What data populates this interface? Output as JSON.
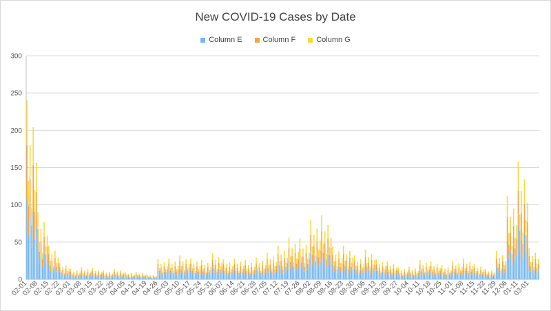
{
  "chart_data": {
    "type": "bar",
    "stacked": true,
    "title": "New COVID-19 Cases by Date",
    "xlabel": "",
    "ylabel": "",
    "ylim": [
      0,
      300
    ],
    "yticks": [
      "0",
      "50",
      "100",
      "150",
      "200",
      "250",
      "300"
    ],
    "grid": true,
    "legend_position": "top",
    "colors": {
      "Column E": "#74b6f0",
      "Column F": "#f7a33f",
      "Column G": "#fdd83a",
      "grid": "#d9d9d9",
      "axis": "#bfbfbf"
    },
    "x_tick_labels": [
      "02-01",
      "02-08",
      "02-15",
      "02-22",
      "03-01",
      "03-08",
      "03-15",
      "03-22",
      "03-29",
      "04-05",
      "04-12",
      "04-19",
      "04-26",
      "05-03",
      "05-10",
      "05-17",
      "05-24",
      "05-31",
      "06-07",
      "06-14",
      "06-21",
      "06-28",
      "07-05",
      "07-12",
      "07-19",
      "07-26",
      "08-02",
      "08-09",
      "08-16",
      "08-23",
      "08-30",
      "09-06",
      "09-13",
      "09-20",
      "09-27",
      "10-04",
      "10-11",
      "10-18",
      "10-25",
      "11-01",
      "11-08",
      "11-15",
      "11-22",
      "11-29",
      "12-06",
      "01-11",
      "03-01"
    ],
    "weekly_totals": [
      240,
      90,
      45,
      22,
      14,
      16,
      15,
      12,
      14,
      10,
      10,
      7,
      27,
      28,
      32,
      28,
      26,
      35,
      27,
      28,
      26,
      29,
      36,
      45,
      56,
      55,
      80,
      86,
      44,
      45,
      32,
      40,
      27,
      24,
      16,
      17,
      26,
      24,
      19,
      25,
      28,
      20,
      14,
      38,
      112,
      158,
      42
    ],
    "series": [
      {
        "name": "Column E",
        "share": 0.45
      },
      {
        "name": "Column F",
        "share": 0.3
      },
      {
        "name": "Column G",
        "share": 0.25
      }
    ]
  }
}
